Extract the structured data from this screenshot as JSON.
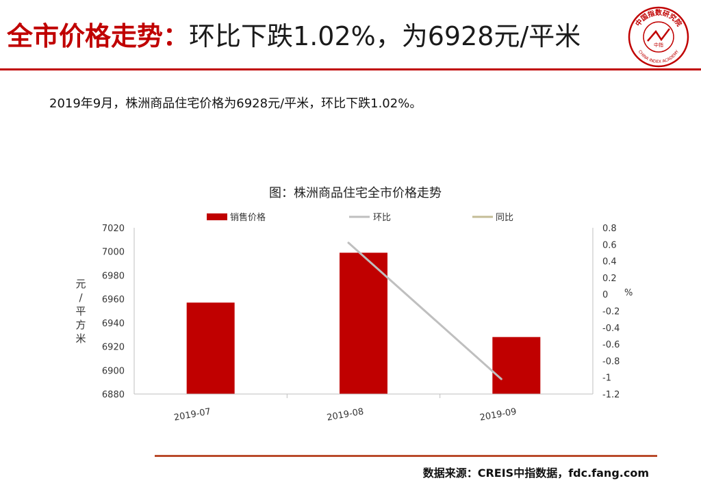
{
  "header": {
    "title_red": "全市价格走势：",
    "title_black": "环比下跌1.02%，为6928元/平米",
    "accent_color": "#c00000"
  },
  "logo": {
    "name": "china-index-academy-seal-icon",
    "ring_text": "中国指数研究院",
    "latin_text": "CHINA INDEX ACADEMY",
    "center_text": "中指"
  },
  "summary": "2019年9月，株洲商品住宅价格为6928元/平米，环比下跌1.02%。",
  "chart_data": {
    "type": "bar",
    "title": "图：株洲商品住宅全市价格走势",
    "categories": [
      "2019-07",
      "2019-08",
      "2019-09"
    ],
    "series": [
      {
        "name": "销售价格",
        "type": "bar",
        "axis": "left",
        "color": "#c00000",
        "values": [
          6957,
          6999,
          6928
        ]
      },
      {
        "name": "环比",
        "type": "line",
        "axis": "right",
        "color": "#bfbfbf",
        "values": [
          null,
          0.62,
          -1.02
        ]
      },
      {
        "name": "同比",
        "type": "line",
        "axis": "right",
        "color": "#c4bd97",
        "values": [
          null,
          null,
          null
        ]
      }
    ],
    "ylabel": "元/平方米",
    "y2label": "%",
    "ylim": [
      6880,
      7020
    ],
    "y_ticks": [
      6880,
      6900,
      6920,
      6940,
      6960,
      6980,
      7000,
      7020
    ],
    "y2lim": [
      -1.2,
      0.8
    ],
    "y2_ticks": [
      "0.8",
      "0.6",
      "0.4",
      "0.2",
      "0",
      "-0.2",
      "-0.4",
      "-0.6",
      "-0.8",
      "-1",
      "-1.2"
    ],
    "legend_position": "top",
    "grid": false
  },
  "footer": {
    "source": "数据来源：CREIS中指数据，fdc.fang.com"
  }
}
